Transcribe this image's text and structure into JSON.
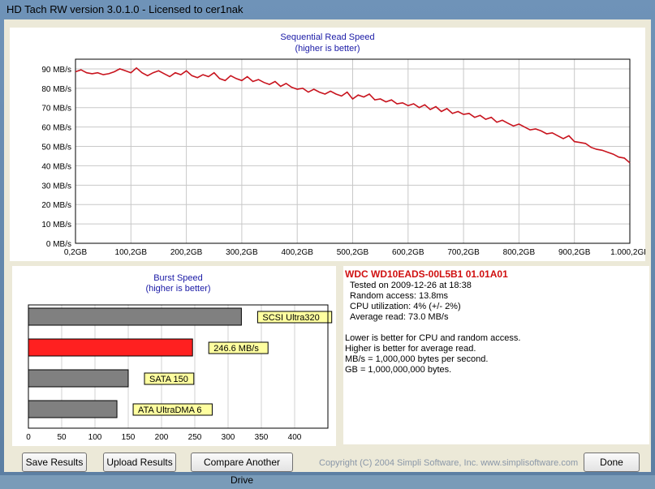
{
  "window": {
    "title": "HD Tach RW version 3.0.1.0 - Licensed to cer1nak"
  },
  "sequential": {
    "title": "Sequential Read Speed",
    "subtitle": "(higher is better)"
  },
  "burst": {
    "title": "Burst Speed",
    "subtitle": "(higher is better)"
  },
  "chart_data": [
    {
      "type": "line",
      "title": "Sequential Read Speed",
      "subtitle": "(higher is better)",
      "x_ticks": [
        "0,2GB",
        "100,2GB",
        "200,2GB",
        "300,2GB",
        "400,2GB",
        "500,2GB",
        "600,2GB",
        "700,2GB",
        "800,2GB",
        "900,2GB",
        "1.000,2GB"
      ],
      "y_ticks": [
        "0 MB/s",
        "10 MB/s",
        "20 MB/s",
        "30 MB/s",
        "40 MB/s",
        "50 MB/s",
        "60 MB/s",
        "70 MB/s",
        "80 MB/s",
        "90 MB/s"
      ],
      "ylim": [
        0,
        95
      ],
      "xlim": [
        0,
        1000
      ],
      "grid": true,
      "color": "#c8141e",
      "series": [
        {
          "x": [
            0,
            10,
            20,
            30,
            40,
            50,
            60,
            70,
            80,
            90,
            100,
            110,
            120,
            130,
            140,
            150,
            160,
            170,
            180,
            190,
            200,
            210,
            220,
            230,
            240,
            250,
            260,
            270,
            280,
            290,
            300,
            310,
            320,
            330,
            340,
            350,
            360,
            370,
            380,
            390,
            400,
            410,
            420,
            430,
            440,
            450,
            460,
            470,
            480,
            490,
            500,
            510,
            520,
            530,
            540,
            550,
            560,
            570,
            580,
            590,
            600,
            610,
            620,
            630,
            640,
            650,
            660,
            670,
            680,
            690,
            700,
            710,
            720,
            730,
            740,
            750,
            760,
            770,
            780,
            790,
            800,
            810,
            820,
            830,
            840,
            850,
            860,
            870,
            880,
            890,
            900,
            910,
            920,
            930,
            940,
            950,
            960,
            970,
            980,
            990,
            1000
          ],
          "values": [
            88.5,
            89.5,
            88,
            87.5,
            88,
            87,
            87.5,
            88.5,
            90,
            89,
            88,
            90.5,
            88,
            86.5,
            88,
            89,
            87.5,
            86,
            88,
            87,
            89,
            86.5,
            85.5,
            87,
            86,
            88,
            85,
            84,
            86.5,
            85,
            84,
            86,
            83.5,
            84.5,
            83,
            82,
            83.5,
            81,
            82.5,
            80.5,
            79.5,
            80,
            78,
            79.5,
            78,
            77,
            78.5,
            77,
            76,
            78,
            74.5,
            76.5,
            75.5,
            77,
            74,
            74.5,
            73,
            74,
            72,
            72.5,
            71,
            72,
            70,
            71.5,
            69,
            70.5,
            68,
            69.5,
            67,
            68,
            66.5,
            67,
            65,
            66,
            64,
            65,
            62.5,
            63.5,
            62,
            60.5,
            61.5,
            60,
            58.5,
            59,
            58,
            56.5,
            57,
            55.5,
            54,
            55.5,
            52.5,
            52,
            51.5,
            49.5,
            48.5,
            48,
            47,
            46,
            44.5,
            44,
            41.5
          ]
        }
      ]
    },
    {
      "type": "bar",
      "title": "Burst Speed",
      "subtitle": "(higher is better)",
      "x_ticks": [
        "0",
        "50",
        "100",
        "150",
        "200",
        "250",
        "300",
        "350",
        "400"
      ],
      "xlim": [
        0,
        450
      ],
      "grid": true,
      "bars": [
        {
          "label": "SCSI Ultra320",
          "value": 320,
          "color": "#808080"
        },
        {
          "label": "246.6 MB/s",
          "value": 246.6,
          "color": "#ff2020"
        },
        {
          "label": "SATA 150",
          "value": 150,
          "color": "#808080"
        },
        {
          "label": "ATA UltraDMA 6",
          "value": 133,
          "color": "#808080"
        }
      ]
    }
  ],
  "info": {
    "drive": "WDC WD10EADS-00L5B1 01.01A01",
    "tested": "Tested on 2009-12-26 at 18:38",
    "random_access": "Random access: 13.8ms",
    "cpu": "CPU utilization: 4% (+/- 2%)",
    "average_read": "Average read: 73.0 MB/s",
    "note1": "Lower is better for CPU and random access.",
    "note2": "Higher is better for average read.",
    "note3": "MB/s = 1,000,000 bytes per second.",
    "note4": "GB = 1,000,000,000 bytes."
  },
  "buttons": {
    "save": "Save Results",
    "upload": "Upload Results",
    "compare": "Compare Another Drive",
    "done": "Done"
  },
  "footer": "Copyright (C) 2004 Simpli Software, Inc. www.simplisoftware.com"
}
